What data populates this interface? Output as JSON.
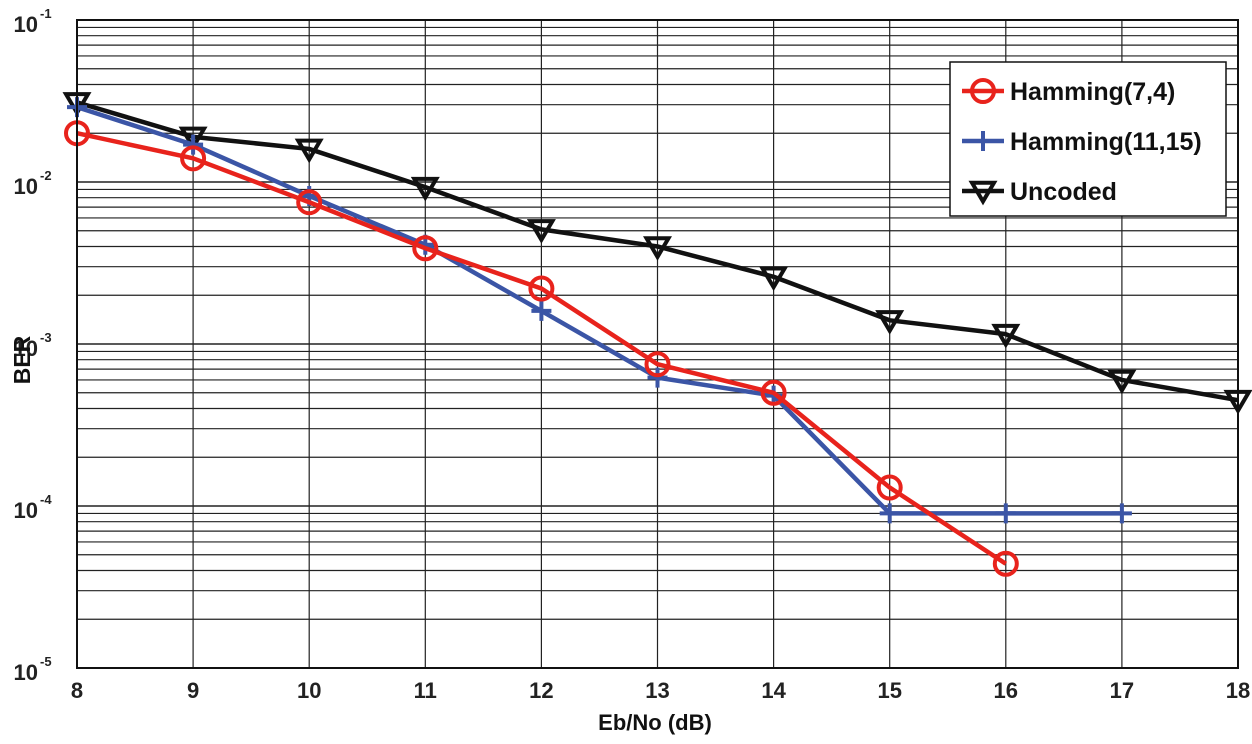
{
  "chart_data": {
    "type": "line",
    "xlabel": "Eb/No (dB)",
    "ylabel": "BER",
    "x_ticks": [
      "8",
      "9",
      "10",
      "11",
      "12",
      "13",
      "14",
      "15",
      "16",
      "17",
      "18"
    ],
    "y_ticks": [
      {
        "base": "10",
        "exp": "-1"
      },
      {
        "base": "10",
        "exp": "-2"
      },
      {
        "base": "10",
        "exp": "-3"
      },
      {
        "base": "10",
        "exp": "-4"
      },
      {
        "base": "10",
        "exp": "-5"
      }
    ],
    "xlim": [
      8,
      18
    ],
    "ylim": [
      1e-05,
      0.1
    ],
    "yscale": "log",
    "grid": true,
    "legend_position": "top-right",
    "series": [
      {
        "name": "Hamming(7,4)",
        "color": "#e8231c",
        "marker": "circle",
        "x": [
          8,
          9,
          10,
          11,
          12,
          13,
          14,
          15,
          16
        ],
        "y": [
          0.02,
          0.014,
          0.0075,
          0.0039,
          0.0022,
          0.00075,
          0.0005,
          0.00013,
          4.4e-05
        ]
      },
      {
        "name": "Hamming(11,15)",
        "color": "#3b55a6",
        "marker": "plus",
        "x": [
          8,
          9,
          10,
          11,
          12,
          13,
          14,
          15,
          16,
          17
        ],
        "y": [
          0.029,
          0.017,
          0.0082,
          0.0041,
          0.0016,
          0.00062,
          0.00048,
          9e-05,
          9e-05,
          9e-05
        ]
      },
      {
        "name": "Uncoded",
        "color": "#111111",
        "marker": "triangle-down",
        "x": [
          8,
          9,
          10,
          11,
          12,
          13,
          14,
          15,
          16,
          17,
          18
        ],
        "y": [
          0.031,
          0.019,
          0.016,
          0.0093,
          0.0051,
          0.004,
          0.0026,
          0.0014,
          0.00115,
          0.0006,
          0.00045
        ]
      }
    ]
  }
}
